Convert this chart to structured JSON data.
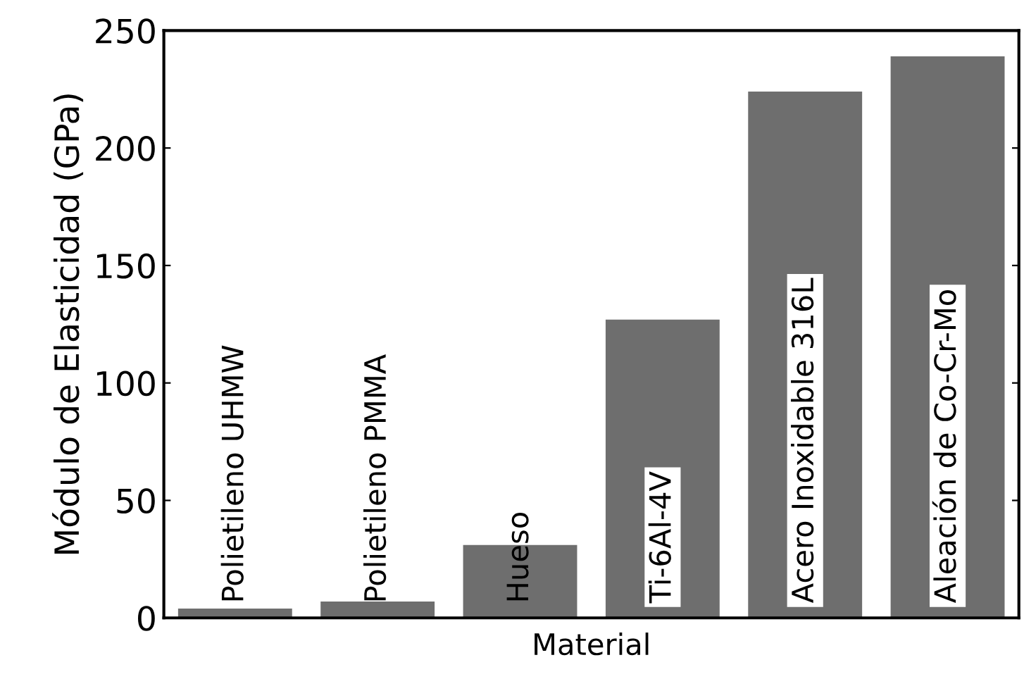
{
  "chart_data": {
    "type": "bar",
    "xlabel": "Material",
    "ylabel": "Módulo de Elasticidad (GPa)",
    "categories": [
      "Polietileno UHMW",
      "Polietileno PMMA",
      "Hueso",
      "Ti-6Al-4V",
      "Acero Inoxidable 316L",
      "Aleación de Co-Cr-Mo"
    ],
    "values": [
      4,
      7,
      31,
      127,
      224,
      239
    ],
    "color": "#6e6e6e",
    "ylim": [
      0,
      250
    ],
    "yticks": [
      0,
      50,
      100,
      150,
      200,
      250
    ],
    "grid": false
  }
}
